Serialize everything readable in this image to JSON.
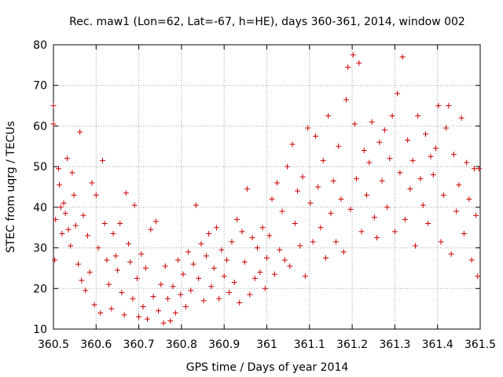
{
  "chart_data": {
    "type": "scatter",
    "title": "Rec. maw1 (Lon=62, Lat=-67, h=HE), days 360-361, 2014, window 002",
    "xlabel": "GPS time / Days of year 2014",
    "ylabel": "STEC from uqrg / TECUs",
    "xlim": [
      360.5,
      361.5
    ],
    "ylim": [
      10,
      80
    ],
    "grid": true,
    "marker": "+",
    "color": "#cc0000",
    "x_ticks": [
      "360.5",
      "360.6",
      "360.7",
      "360.8",
      "360.9",
      "361",
      "361.1",
      "361.2",
      "361.3",
      "361.4",
      "361.5"
    ],
    "y_ticks": [
      "10",
      "20",
      "30",
      "40",
      "50",
      "60",
      "70",
      "80"
    ],
    "series": [
      {
        "points": [
          [
            360.5,
            65.0
          ],
          [
            360.5,
            60.5
          ],
          [
            360.503,
            27.0
          ],
          [
            360.505,
            37.0
          ],
          [
            360.512,
            49.5
          ],
          [
            360.514,
            45.5
          ],
          [
            360.517,
            40.0
          ],
          [
            360.52,
            33.5
          ],
          [
            360.524,
            41.0
          ],
          [
            360.528,
            38.5
          ],
          [
            360.532,
            52.0
          ],
          [
            360.535,
            34.5
          ],
          [
            360.54,
            30.5
          ],
          [
            360.544,
            48.5
          ],
          [
            360.548,
            43.0
          ],
          [
            360.552,
            35.5
          ],
          [
            360.558,
            26.0
          ],
          [
            360.562,
            58.5
          ],
          [
            360.566,
            22.0
          ],
          [
            360.57,
            38.0
          ],
          [
            360.575,
            19.5
          ],
          [
            360.58,
            33.0
          ],
          [
            360.585,
            24.0
          ],
          [
            360.59,
            46.0
          ],
          [
            360.596,
            16.0
          ],
          [
            360.6,
            43.0
          ],
          [
            360.605,
            30.0
          ],
          [
            360.61,
            14.0
          ],
          [
            360.615,
            51.5
          ],
          [
            360.62,
            36.0
          ],
          [
            360.625,
            27.0
          ],
          [
            360.63,
            21.0
          ],
          [
            360.636,
            15.0
          ],
          [
            360.64,
            33.5
          ],
          [
            360.646,
            28.0
          ],
          [
            360.65,
            24.5
          ],
          [
            360.656,
            36.0
          ],
          [
            360.66,
            19.0
          ],
          [
            360.666,
            13.5
          ],
          [
            360.67,
            43.5
          ],
          [
            360.676,
            31.0
          ],
          [
            360.68,
            26.5
          ],
          [
            360.686,
            17.5
          ],
          [
            360.69,
            40.5
          ],
          [
            360.696,
            22.5
          ],
          [
            360.7,
            13.0
          ],
          [
            360.706,
            28.5
          ],
          [
            360.71,
            15.5
          ],
          [
            360.716,
            25.0
          ],
          [
            360.72,
            12.5
          ],
          [
            360.728,
            34.5
          ],
          [
            360.734,
            18.0
          ],
          [
            360.74,
            36.5
          ],
          [
            360.746,
            14.5
          ],
          [
            360.752,
            21.0
          ],
          [
            360.758,
            11.5
          ],
          [
            360.762,
            25.5
          ],
          [
            360.768,
            17.5
          ],
          [
            360.774,
            12.0
          ],
          [
            360.78,
            20.5
          ],
          [
            360.786,
            14.0
          ],
          [
            360.792,
            27.0
          ],
          [
            360.798,
            18.5
          ],
          [
            360.804,
            23.5
          ],
          [
            360.81,
            15.5
          ],
          [
            360.816,
            29.0
          ],
          [
            360.822,
            19.5
          ],
          [
            360.828,
            26.0
          ],
          [
            360.834,
            40.5
          ],
          [
            360.84,
            22.5
          ],
          [
            360.846,
            31.0
          ],
          [
            360.852,
            17.0
          ],
          [
            360.858,
            28.0
          ],
          [
            360.864,
            33.5
          ],
          [
            360.87,
            20.5
          ],
          [
            360.876,
            25.0
          ],
          [
            360.882,
            35.0
          ],
          [
            360.888,
            17.5
          ],
          [
            360.894,
            29.5
          ],
          [
            360.9,
            23.0
          ],
          [
            360.906,
            27.0
          ],
          [
            360.912,
            19.0
          ],
          [
            360.918,
            31.5
          ],
          [
            360.924,
            21.5
          ],
          [
            360.93,
            37.0
          ],
          [
            360.936,
            16.5
          ],
          [
            360.942,
            34.0
          ],
          [
            360.948,
            26.5
          ],
          [
            360.954,
            44.5
          ],
          [
            360.96,
            18.5
          ],
          [
            360.966,
            32.5
          ],
          [
            360.972,
            22.5
          ],
          [
            360.978,
            30.0
          ],
          [
            360.984,
            24.0
          ],
          [
            360.99,
            35.0
          ],
          [
            360.996,
            20.0
          ],
          [
            361.0,
            27.5
          ],
          [
            361.006,
            33.0
          ],
          [
            361.012,
            42.0
          ],
          [
            361.018,
            23.5
          ],
          [
            361.024,
            46.0
          ],
          [
            361.03,
            29.5
          ],
          [
            361.036,
            39.0
          ],
          [
            361.042,
            27.0
          ],
          [
            361.048,
            50.0
          ],
          [
            361.054,
            25.5
          ],
          [
            361.06,
            55.5
          ],
          [
            361.066,
            36.0
          ],
          [
            361.072,
            44.0
          ],
          [
            361.078,
            30.5
          ],
          [
            361.084,
            47.5
          ],
          [
            361.09,
            23.0
          ],
          [
            361.096,
            59.5
          ],
          [
            361.102,
            41.0
          ],
          [
            361.108,
            31.5
          ],
          [
            361.114,
            57.5
          ],
          [
            361.12,
            45.0
          ],
          [
            361.126,
            35.0
          ],
          [
            361.132,
            51.5
          ],
          [
            361.138,
            27.5
          ],
          [
            361.144,
            62.5
          ],
          [
            361.15,
            38.5
          ],
          [
            361.156,
            46.5
          ],
          [
            361.162,
            31.5
          ],
          [
            361.168,
            55.0
          ],
          [
            361.174,
            42.0
          ],
          [
            361.18,
            29.0
          ],
          [
            361.186,
            66.5
          ],
          [
            361.19,
            74.5
          ],
          [
            361.196,
            39.5
          ],
          [
            361.202,
            77.5
          ],
          [
            361.206,
            60.5
          ],
          [
            361.21,
            47.0
          ],
          [
            361.216,
            75.5
          ],
          [
            361.222,
            34.0
          ],
          [
            361.228,
            54.0
          ],
          [
            361.234,
            43.0
          ],
          [
            361.24,
            51.0
          ],
          [
            361.246,
            61.0
          ],
          [
            361.252,
            37.5
          ],
          [
            361.258,
            32.5
          ],
          [
            361.264,
            56.0
          ],
          [
            361.27,
            46.5
          ],
          [
            361.276,
            59.0
          ],
          [
            361.282,
            40.0
          ],
          [
            361.288,
            52.0
          ],
          [
            361.294,
            62.5
          ],
          [
            361.3,
            34.0
          ],
          [
            361.306,
            68.0
          ],
          [
            361.312,
            48.5
          ],
          [
            361.318,
            77.0
          ],
          [
            361.324,
            37.0
          ],
          [
            361.33,
            56.5
          ],
          [
            361.336,
            44.5
          ],
          [
            361.342,
            51.5
          ],
          [
            361.348,
            30.5
          ],
          [
            361.354,
            62.5
          ],
          [
            361.36,
            47.0
          ],
          [
            361.366,
            40.5
          ],
          [
            361.372,
            58.0
          ],
          [
            361.378,
            36.0
          ],
          [
            361.384,
            52.5
          ],
          [
            361.39,
            48.0
          ],
          [
            361.396,
            54.5
          ],
          [
            361.402,
            65.0
          ],
          [
            361.408,
            31.5
          ],
          [
            361.414,
            43.0
          ],
          [
            361.42,
            59.5
          ],
          [
            361.426,
            65.0
          ],
          [
            361.432,
            28.5
          ],
          [
            361.438,
            53.0
          ],
          [
            361.444,
            39.0
          ],
          [
            361.45,
            45.5
          ],
          [
            361.456,
            62.0
          ],
          [
            361.462,
            33.5
          ],
          [
            361.468,
            51.0
          ],
          [
            361.474,
            42.0
          ],
          [
            361.48,
            27.0
          ],
          [
            361.486,
            49.5
          ],
          [
            361.49,
            38.0
          ],
          [
            361.494,
            23.0
          ],
          [
            361.497,
            49.5
          ]
        ]
      }
    ]
  }
}
